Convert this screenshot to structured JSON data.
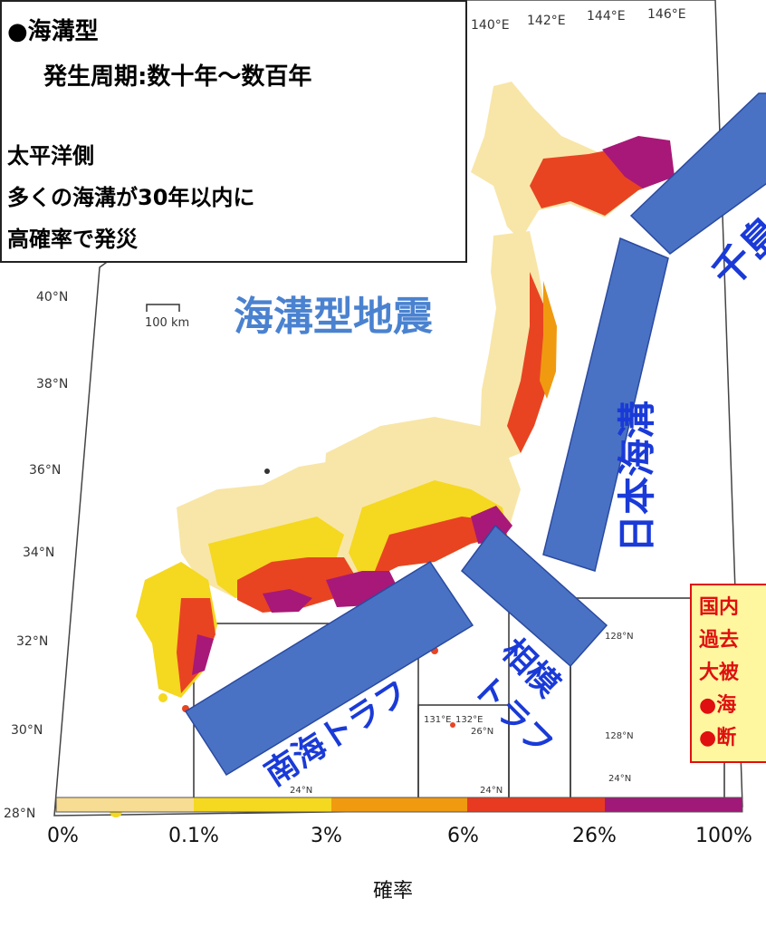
{
  "info_box": {
    "line1": "●海溝型",
    "line2": "発生周期:数十年～数百年",
    "line3": "太平洋側",
    "line4": "多くの海溝が30年以内に",
    "line5": "高確率で発災"
  },
  "map": {
    "heading": "海溝型地震",
    "scale_label": "100 km",
    "lon_labels": [
      "140°E",
      "142°E",
      "144°E",
      "146°E"
    ],
    "lat_labels": [
      "40°N",
      "38°N",
      "36°N",
      "34°N",
      "32°N",
      "30°N",
      "28°N"
    ],
    "inset_labels": [
      "131°E",
      "132°E",
      "26°N",
      "24°N",
      "24°N",
      "128°N",
      "128°N",
      "24°N"
    ],
    "trench_labels": {
      "chishima": "千島",
      "japan": "日本海溝",
      "sagami_line1": "相模",
      "sagami_line2": "トラフ",
      "nankai": "南海トラフ"
    },
    "trench_color": "#4a72c4"
  },
  "note_box": {
    "line1": "国内",
    "line2": "過去",
    "line3": "大被",
    "line4": "●海",
    "line5": "●断"
  },
  "legend": {
    "title": "確率",
    "ticks": [
      "0%",
      "0.1%",
      "3%",
      "6%",
      "26%",
      "100%"
    ],
    "colors": [
      "#f7dc94",
      "#f5d820",
      "#f09a10",
      "#e83a20",
      "#a01878"
    ]
  }
}
